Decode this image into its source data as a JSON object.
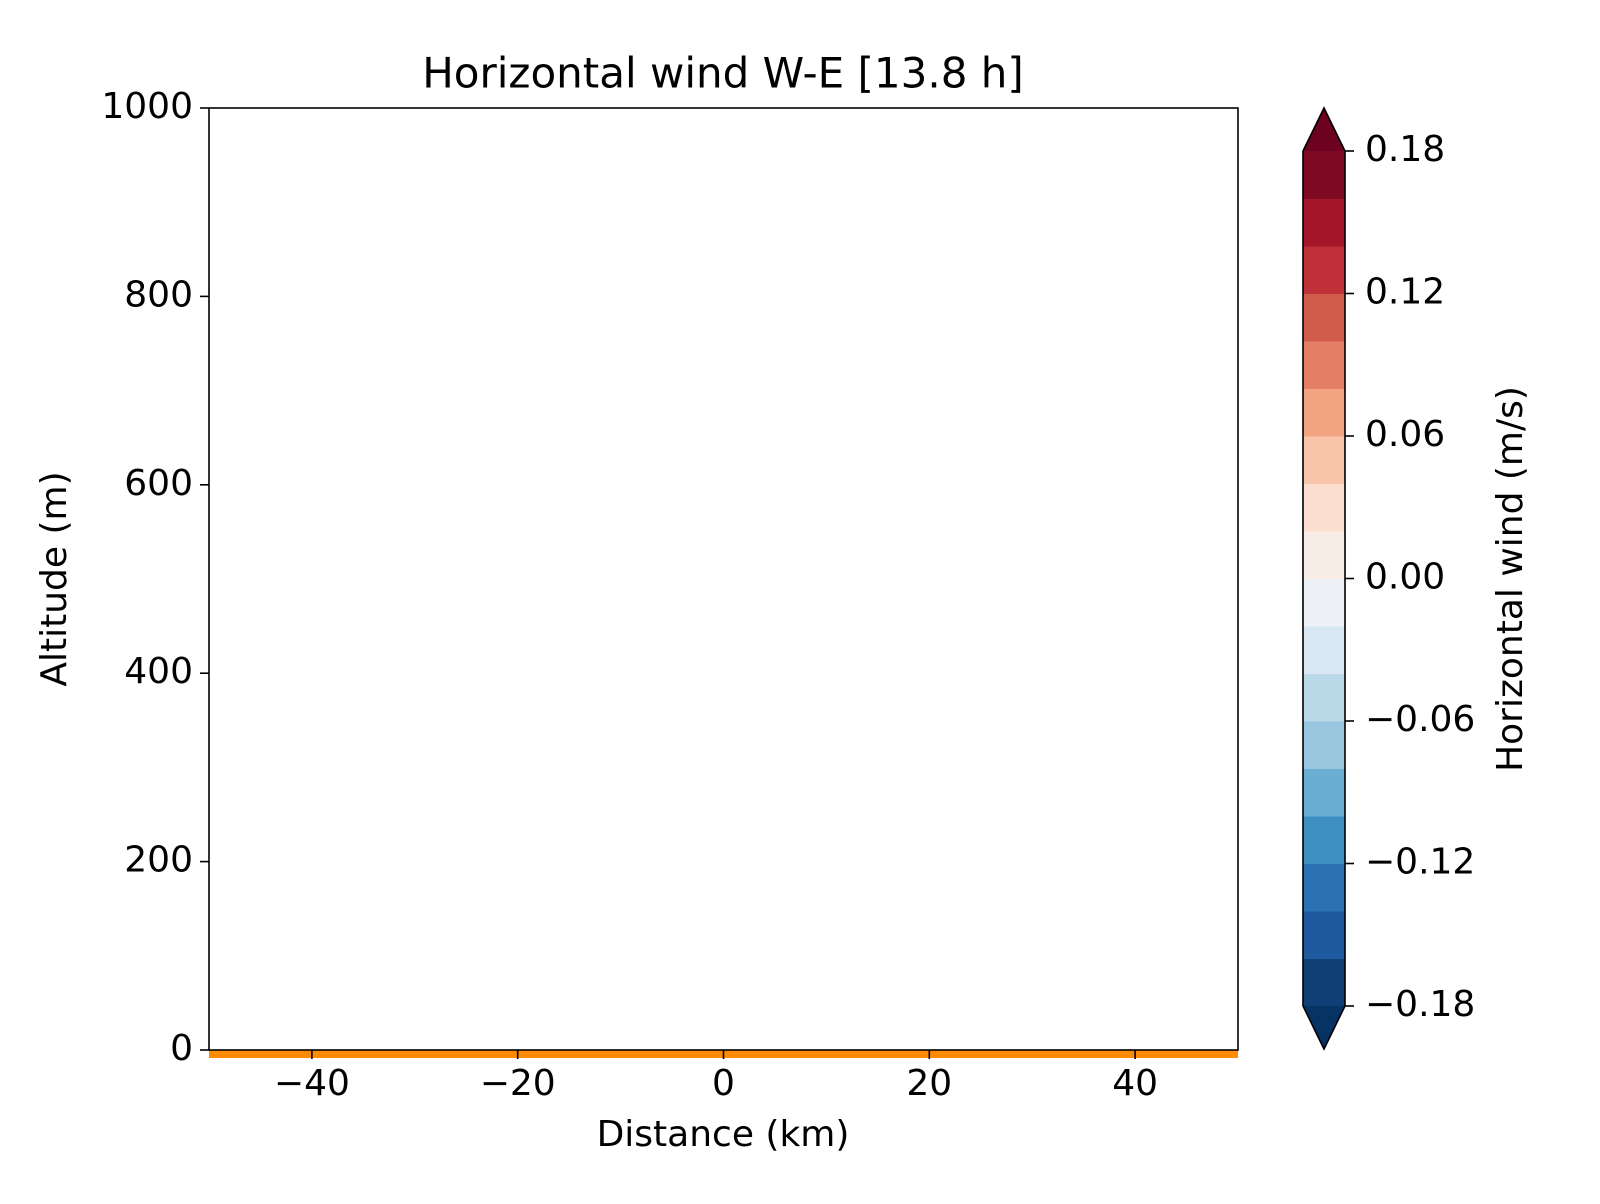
{
  "chart_data": {
    "type": "contourf",
    "title": "Horizontal wind W-E [13.8 h]",
    "xlabel": "Distance (km)",
    "ylabel": "Altitude (m)",
    "xlim": [
      -50,
      50
    ],
    "ylim": [
      0,
      1000
    ],
    "xticks": [
      {
        "value": -40,
        "label": "−40"
      },
      {
        "value": -20,
        "label": "−20"
      },
      0,
      20,
      40
    ],
    "yticks": [
      0,
      200,
      400,
      600,
      800,
      1000
    ],
    "ground_color": "#ff8c00",
    "colorbar": {
      "label": "Horizontal wind (m/s)",
      "levels": [
        -0.18,
        -0.16,
        -0.14,
        -0.12,
        -0.1,
        -0.08,
        -0.06,
        -0.04,
        -0.02,
        0,
        0.02,
        0.04,
        0.06,
        0.08,
        0.1,
        0.12,
        0.14,
        0.16,
        0.18
      ],
      "colors": [
        "#0f3f75",
        "#1f5a9f",
        "#2b72b2",
        "#3d8fc2",
        "#6aaed3",
        "#98c7df",
        "#bad9e9",
        "#d8e7f1",
        "#edf1f5",
        "#f7ece6",
        "#fbdecf",
        "#f8c4aa",
        "#f3a481",
        "#e37f65",
        "#d05d4b",
        "#c03039",
        "#a5152a",
        "#7d0922"
      ],
      "extend_colors": [
        "#063264",
        "#6d0220"
      ],
      "ticks": [
        {
          "value": -0.18,
          "label": "−0.18"
        },
        {
          "value": -0.12,
          "label": "−0.12"
        },
        {
          "value": -0.06,
          "label": "−0.06"
        },
        {
          "value": 0,
          "label": "0.00"
        },
        0.06,
        0.12,
        0.18
      ]
    }
  }
}
